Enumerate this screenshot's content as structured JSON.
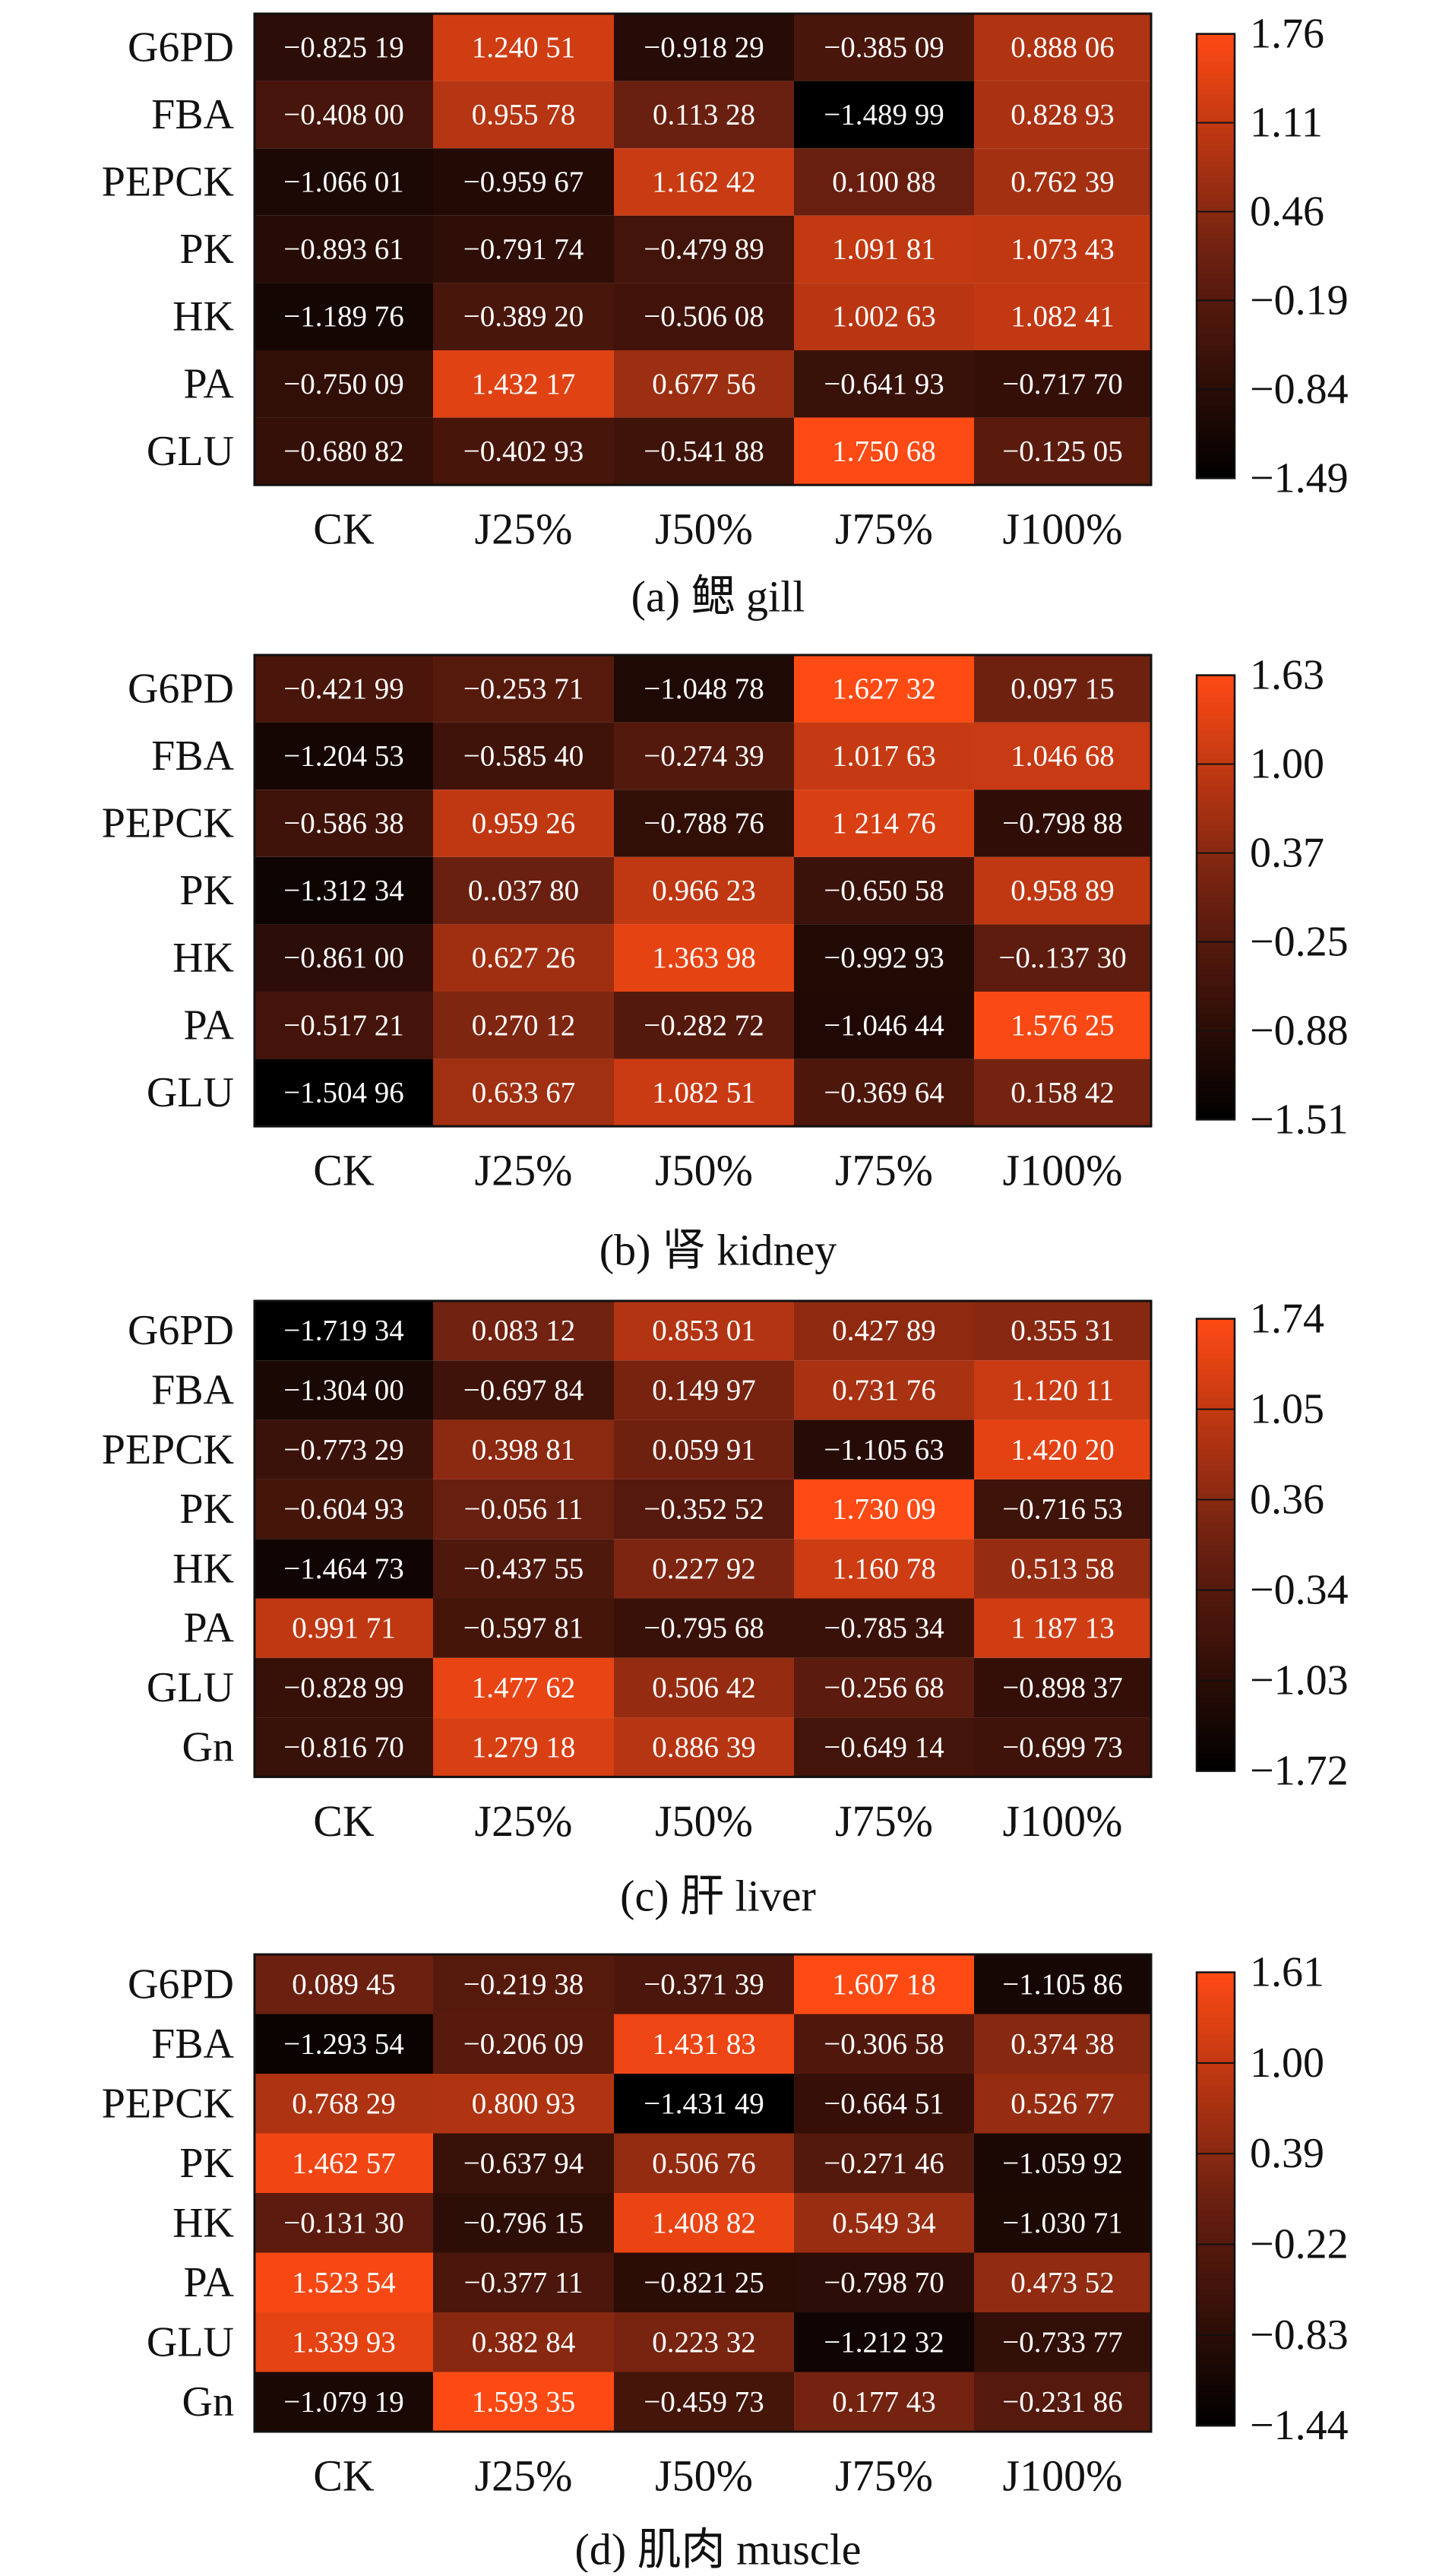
{
  "colorscale": {
    "low": "#000000",
    "mid": "#6b2010",
    "high": "#ff4a14",
    "text": "#ffffff",
    "border": "#111111"
  },
  "chart_data": [
    {
      "type": "heatmap",
      "caption": "(a) 鳃 gill",
      "rows": [
        "G6PD",
        "FBA",
        "PEPCK",
        "PK",
        "HK",
        "PA",
        "GLU"
      ],
      "columns": [
        "CK",
        "J25%",
        "J50%",
        "J75%",
        "J100%"
      ],
      "values": [
        [
          -0.82519,
          1.24051,
          -0.91829,
          -0.38509,
          0.88806
        ],
        [
          -0.408,
          0.95578,
          0.11328,
          -1.48999,
          0.82893
        ],
        [
          -1.06601,
          -0.95967,
          1.16242,
          0.10088,
          0.76239
        ],
        [
          -0.89361,
          -0.79174,
          -0.47989,
          1.09181,
          1.07343
        ],
        [
          -1.18976,
          -0.3892,
          -0.50608,
          1.00263,
          1.08241
        ],
        [
          -0.75009,
          1.43217,
          0.67756,
          -0.64193,
          -0.7177
        ],
        [
          -0.68082,
          -0.40293,
          -0.54188,
          1.75068,
          -0.12505
        ]
      ],
      "labels": [
        [
          "−0.825 19",
          "1.240 51",
          "−0.918 29",
          "−0.385 09",
          "0.888 06"
        ],
        [
          "−0.408 00",
          "0.955 78",
          "0.113 28",
          "−1.489 99",
          "0.828 93"
        ],
        [
          "−1.066 01",
          "−0.959 67",
          "1.162 42",
          "0.100 88",
          "0.762 39"
        ],
        [
          "−0.893 61",
          "−0.791 74",
          "−0.479 89",
          "1.091 81",
          "1.073 43"
        ],
        [
          "−1.189 76",
          "−0.389 20",
          "−0.506 08",
          "1.002 63",
          "1.082 41"
        ],
        [
          "−0.750 09",
          "1.432 17",
          "0.677 56",
          "−0.641 93",
          "−0.717 70"
        ],
        [
          "−0.680 82",
          "−0.402 93",
          "−0.541 88",
          "1.750 68",
          "−0.125 05"
        ]
      ],
      "colorbar": {
        "min": -1.49,
        "max": 1.76,
        "ticks": [
          "1.76",
          "1.11",
          "0.46",
          "−0.19",
          "−0.84",
          "−1.49"
        ]
      }
    },
    {
      "type": "heatmap",
      "caption": "(b) 肾 kidney",
      "rows": [
        "G6PD",
        "FBA",
        "PEPCK",
        "PK",
        "HK",
        "PA",
        "GLU"
      ],
      "columns": [
        "CK",
        "J25%",
        "J50%",
        "J75%",
        "J100%"
      ],
      "values": [
        [
          -0.42199,
          -0.25371,
          -1.04878,
          1.62732,
          0.09715
        ],
        [
          -1.20453,
          -0.5854,
          -0.27439,
          1.01763,
          1.04668
        ],
        [
          -0.58638,
          0.95926,
          -0.78876,
          1.21476,
          -0.79888
        ],
        [
          -1.31234,
          0.0378,
          0.96623,
          -0.65058,
          0.95889
        ],
        [
          -0.861,
          0.62726,
          1.36398,
          -0.99293,
          -0.1373
        ],
        [
          -0.51721,
          0.27012,
          -0.28272,
          -1.04644,
          1.57625
        ],
        [
          -1.50496,
          0.63367,
          1.08251,
          -0.36964,
          0.15842
        ]
      ],
      "labels": [
        [
          "−0.421 99",
          "−0.253 71",
          "−1.048 78",
          "1.627 32",
          "0.097 15"
        ],
        [
          "−1.204 53",
          "−0.585 40",
          "−0.274 39",
          "1.017 63",
          "1.046 68"
        ],
        [
          "−0.586 38",
          "0.959 26",
          "−0.788 76",
          "1 214 76",
          "−0.798 88"
        ],
        [
          "−1.312 34",
          "0..037 80",
          "0.966 23",
          "−0.650 58",
          "0.958 89"
        ],
        [
          "−0.861 00",
          "0.627 26",
          "1.363 98",
          "−0.992 93",
          "−0..137 30"
        ],
        [
          "−0.517 21",
          "0.270 12",
          "−0.282 72",
          "−1.046 44",
          "1.576 25"
        ],
        [
          "−1.504 96",
          "0.633 67",
          "1.082 51",
          "−0.369 64",
          "0.158 42"
        ]
      ],
      "colorbar": {
        "min": -1.51,
        "max": 1.63,
        "ticks": [
          "1.63",
          "1.00",
          "0.37",
          "−0.25",
          "−0.88",
          "−1.51"
        ]
      }
    },
    {
      "type": "heatmap",
      "caption": "(c) 肝 liver",
      "rows": [
        "G6PD",
        "FBA",
        "PEPCK",
        "PK",
        "HK",
        "PA",
        "GLU",
        "Gn"
      ],
      "columns": [
        "CK",
        "J25%",
        "J50%",
        "J75%",
        "J100%"
      ],
      "values": [
        [
          -1.71934,
          0.08312,
          0.85301,
          0.42789,
          0.35531
        ],
        [
          -1.304,
          -0.69784,
          0.14997,
          0.73176,
          1.12011
        ],
        [
          -0.77329,
          0.39881,
          0.05991,
          -1.10563,
          1.4202
        ],
        [
          -0.60493,
          -0.05611,
          -0.35252,
          1.73009,
          -0.71653
        ],
        [
          -1.46473,
          -0.43755,
          0.22792,
          1.16078,
          0.51358
        ],
        [
          0.99171,
          -0.59781,
          -0.79568,
          -0.78534,
          1.18713
        ],
        [
          -0.82899,
          1.47762,
          0.50642,
          -0.25668,
          -0.89837
        ],
        [
          -0.8167,
          1.27918,
          0.88639,
          -0.64914,
          -0.69973
        ]
      ],
      "labels": [
        [
          "−1.719 34",
          "0.083 12",
          "0.853 01",
          "0.427 89",
          "0.355 31"
        ],
        [
          "−1.304 00",
          "−0.697 84",
          "0.149 97",
          "0.731 76",
          "1.120 11"
        ],
        [
          "−0.773 29",
          "0.398 81",
          "0.059 91",
          "−1.105 63",
          "1.420 20"
        ],
        [
          "−0.604 93",
          "−0.056 11",
          "−0.352 52",
          "1.730 09",
          "−0.716 53"
        ],
        [
          "−1.464 73",
          "−0.437 55",
          "0.227 92",
          "1.160 78",
          "0.513 58"
        ],
        [
          "0.991 71",
          "−0.597 81",
          "−0.795 68",
          "−0.785 34",
          "1 187 13"
        ],
        [
          "−0.828 99",
          "1.477 62",
          "0.506 42",
          "−0.256 68",
          "−0.898 37"
        ],
        [
          "−0.816 70",
          "1.279 18",
          "0.886 39",
          "−0.649 14",
          "−0.699 73"
        ]
      ],
      "colorbar": {
        "min": -1.72,
        "max": 1.74,
        "ticks": [
          "1.74",
          "1.05",
          "0.36",
          "−0.34",
          "−1.03",
          "−1.72"
        ]
      }
    },
    {
      "type": "heatmap",
      "caption": "(d) 肌肉 muscle",
      "rows": [
        "G6PD",
        "FBA",
        "PEPCK",
        "PK",
        "HK",
        "PA",
        "GLU",
        "Gn"
      ],
      "columns": [
        "CK",
        "J25%",
        "J50%",
        "J75%",
        "J100%"
      ],
      "values": [
        [
          0.08945,
          -0.21938,
          -0.37139,
          1.60718,
          -1.10586
        ],
        [
          -1.29354,
          -0.20609,
          1.43183,
          -0.30658,
          0.37438
        ],
        [
          0.76829,
          0.80093,
          -1.43149,
          -0.66451,
          0.52677
        ],
        [
          1.46257,
          -0.63794,
          0.50676,
          -0.27146,
          -1.05992
        ],
        [
          -0.1313,
          -0.79615,
          1.40882,
          0.54934,
          -1.03071
        ],
        [
          1.52354,
          -0.37711,
          -0.82125,
          -0.7987,
          0.47352
        ],
        [
          1.33993,
          0.38284,
          0.22332,
          -1.21232,
          -0.73377
        ],
        [
          -1.07919,
          1.59335,
          -0.45973,
          0.17743,
          -0.23186
        ]
      ],
      "labels": [
        [
          "0.089 45",
          "−0.219 38",
          "−0.371 39",
          "1.607 18",
          "−1.105 86"
        ],
        [
          "−1.293 54",
          "−0.206 09",
          "1.431 83",
          "−0.306 58",
          "0.374 38"
        ],
        [
          "0.768 29",
          "0.800 93",
          "−1.431 49",
          "−0.664 51",
          "0.526 77"
        ],
        [
          "1.462 57",
          "−0.637 94",
          "0.506 76",
          "−0.271 46",
          "−1.059 92"
        ],
        [
          "−0.131 30",
          "−0.796 15",
          "1.408 82",
          "0.549 34",
          "−1.030 71"
        ],
        [
          "1.523 54",
          "−0.377 11",
          "−0.821 25",
          "−0.798 70",
          "0.473 52"
        ],
        [
          "1.339 93",
          "0.382 84",
          "0.223 32",
          "−1.212 32",
          "−0.733 77"
        ],
        [
          "−1.079 19",
          "1.593 35",
          "−0.459 73",
          "0.177 43",
          "−0.231 86"
        ]
      ],
      "colorbar": {
        "min": -1.44,
        "max": 1.61,
        "ticks": [
          "1.61",
          "1.00",
          "0.39",
          "−0.22",
          "−0.83",
          "−1.44"
        ]
      }
    }
  ]
}
